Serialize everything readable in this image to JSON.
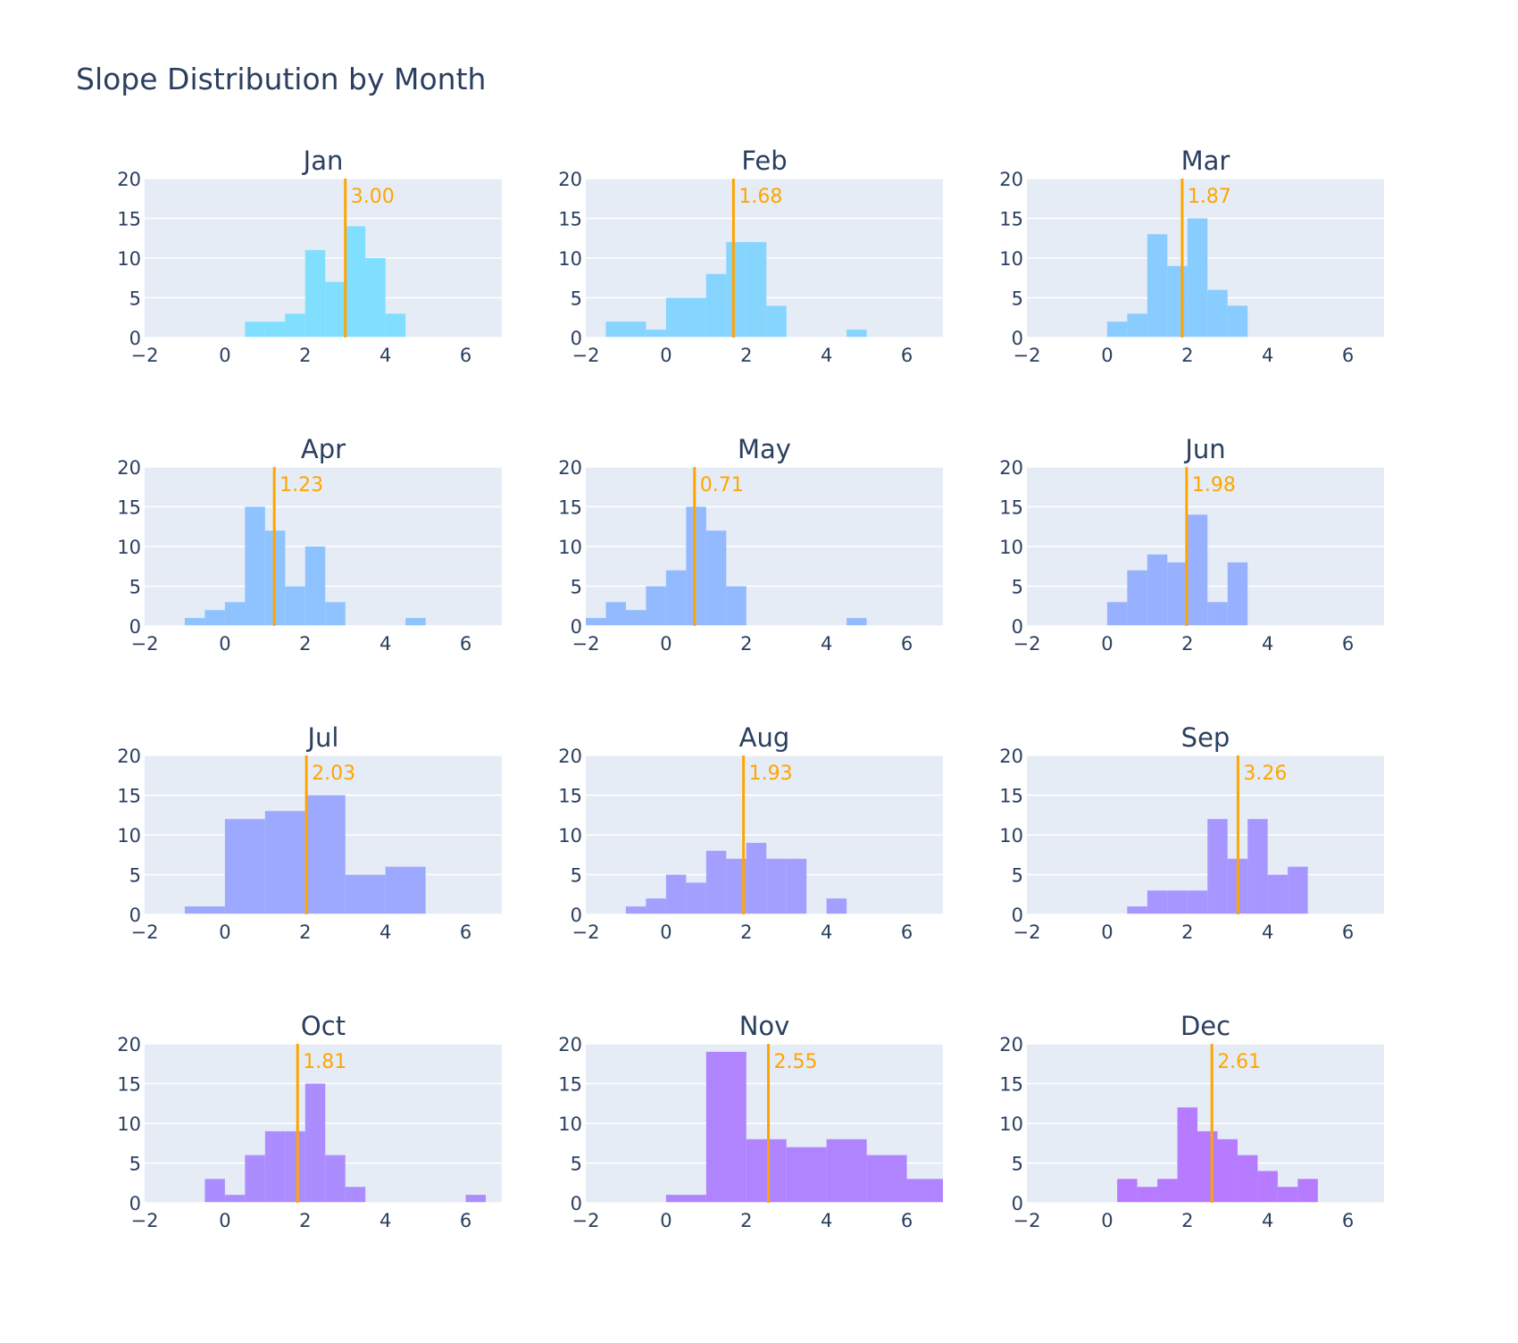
{
  "chart_data": {
    "type": "histogram-grid",
    "title": "Slope Distribution by Month",
    "xlim": [
      -2,
      6.9
    ],
    "ylim": [
      0,
      20
    ],
    "x_ticks": [
      "−2",
      "0",
      "2",
      "4",
      "6"
    ],
    "x_tick_values": [
      -2,
      0,
      2,
      4,
      6
    ],
    "y_ticks": [
      "0",
      "5",
      "10",
      "15",
      "20"
    ],
    "y_tick_values": [
      0,
      5,
      10,
      15,
      20
    ],
    "mean_line_color": "#FFA500",
    "plot_bg": "#E5ECF6",
    "panels": [
      {
        "month": "Jan",
        "mean": 3.0,
        "mean_label": "3.00",
        "color": "#80DFFF",
        "bins": [
          [
            0.5,
            1.0,
            2
          ],
          [
            1.0,
            1.5,
            2
          ],
          [
            1.5,
            2.0,
            3
          ],
          [
            2.0,
            2.5,
            11
          ],
          [
            2.5,
            3.0,
            7
          ],
          [
            3.0,
            3.5,
            14
          ],
          [
            3.5,
            4.0,
            10
          ],
          [
            4.0,
            4.5,
            3
          ]
        ]
      },
      {
        "month": "Feb",
        "mean": 1.68,
        "mean_label": "1.68",
        "color": "#85D5FF",
        "bins": [
          [
            -1.5,
            -1.0,
            2
          ],
          [
            -1.0,
            -0.5,
            2
          ],
          [
            -0.5,
            0.0,
            1
          ],
          [
            0.0,
            0.5,
            5
          ],
          [
            0.5,
            1.0,
            5
          ],
          [
            1.0,
            1.5,
            8
          ],
          [
            1.5,
            2.0,
            12
          ],
          [
            2.0,
            2.5,
            12
          ],
          [
            2.5,
            3.0,
            4
          ],
          [
            4.5,
            5.0,
            1
          ]
        ]
      },
      {
        "month": "Mar",
        "mean": 1.87,
        "mean_label": "1.87",
        "color": "#89CCFF",
        "bins": [
          [
            0.0,
            0.5,
            2
          ],
          [
            0.5,
            1.0,
            3
          ],
          [
            1.0,
            1.5,
            13
          ],
          [
            1.5,
            2.0,
            9
          ],
          [
            2.0,
            2.5,
            15
          ],
          [
            2.5,
            3.0,
            6
          ],
          [
            3.0,
            3.5,
            4
          ]
        ]
      },
      {
        "month": "Apr",
        "mean": 1.23,
        "mean_label": "1.23",
        "color": "#8EC3FF",
        "bins": [
          [
            -1.0,
            -0.5,
            1
          ],
          [
            -0.5,
            0.0,
            2
          ],
          [
            0.0,
            0.5,
            3
          ],
          [
            0.5,
            1.0,
            15
          ],
          [
            1.0,
            1.5,
            12
          ],
          [
            1.5,
            2.0,
            5
          ],
          [
            2.0,
            2.5,
            10
          ],
          [
            2.5,
            3.0,
            3
          ],
          [
            4.5,
            5.0,
            1
          ]
        ]
      },
      {
        "month": "May",
        "mean": 0.71,
        "mean_label": "0.71",
        "color": "#93BAFF",
        "bins": [
          [
            -2.0,
            -1.5,
            1
          ],
          [
            -1.5,
            -1.0,
            3
          ],
          [
            -1.0,
            -0.5,
            2
          ],
          [
            -0.5,
            0.0,
            5
          ],
          [
            0.0,
            0.5,
            7
          ],
          [
            0.5,
            1.0,
            15
          ],
          [
            1.0,
            1.5,
            12
          ],
          [
            1.5,
            2.0,
            5
          ],
          [
            4.5,
            5.0,
            1
          ]
        ]
      },
      {
        "month": "Jun",
        "mean": 1.98,
        "mean_label": "1.98",
        "color": "#98B1FF",
        "bins": [
          [
            0.0,
            0.5,
            3
          ],
          [
            0.5,
            1.0,
            7
          ],
          [
            1.0,
            1.5,
            9
          ],
          [
            1.5,
            2.0,
            8
          ],
          [
            2.0,
            2.5,
            14
          ],
          [
            2.5,
            3.0,
            3
          ],
          [
            3.0,
            3.5,
            8
          ]
        ]
      },
      {
        "month": "Jul",
        "mean": 2.03,
        "mean_label": "2.03",
        "color": "#9DA8FF",
        "bins": [
          [
            -1.0,
            0.0,
            1
          ],
          [
            0.0,
            1.0,
            12
          ],
          [
            1.0,
            2.0,
            13
          ],
          [
            2.0,
            3.0,
            15
          ],
          [
            3.0,
            4.0,
            5
          ],
          [
            4.0,
            5.0,
            6
          ]
        ]
      },
      {
        "month": "Aug",
        "mean": 1.93,
        "mean_label": "1.93",
        "color": "#A29FFF",
        "bins": [
          [
            -1.0,
            -0.5,
            1
          ],
          [
            -0.5,
            0.0,
            2
          ],
          [
            0.0,
            0.5,
            5
          ],
          [
            0.5,
            1.0,
            4
          ],
          [
            1.0,
            1.5,
            8
          ],
          [
            1.5,
            2.0,
            7
          ],
          [
            2.0,
            2.5,
            9
          ],
          [
            2.5,
            3.0,
            7
          ],
          [
            3.0,
            3.5,
            7
          ],
          [
            4.0,
            4.5,
            2
          ]
        ]
      },
      {
        "month": "Sep",
        "mean": 3.26,
        "mean_label": "3.26",
        "color": "#A796FF",
        "bins": [
          [
            0.5,
            1.0,
            1
          ],
          [
            1.0,
            1.5,
            3
          ],
          [
            1.5,
            2.0,
            3
          ],
          [
            2.0,
            2.5,
            3
          ],
          [
            2.5,
            3.0,
            12
          ],
          [
            3.0,
            3.5,
            7
          ],
          [
            3.5,
            4.0,
            12
          ],
          [
            4.0,
            4.5,
            5
          ],
          [
            4.5,
            5.0,
            6
          ]
        ]
      },
      {
        "month": "Oct",
        "mean": 1.81,
        "mean_label": "1.81",
        "color": "#AC8DFF",
        "bins": [
          [
            -0.5,
            0.0,
            3
          ],
          [
            0.0,
            0.5,
            1
          ],
          [
            0.5,
            1.0,
            6
          ],
          [
            1.0,
            1.5,
            9
          ],
          [
            1.5,
            2.0,
            9
          ],
          [
            2.0,
            2.5,
            15
          ],
          [
            2.5,
            3.0,
            6
          ],
          [
            3.0,
            3.5,
            2
          ],
          [
            6.0,
            6.5,
            1
          ]
        ]
      },
      {
        "month": "Nov",
        "mean": 2.55,
        "mean_label": "2.55",
        "color": "#B184FF",
        "bins": [
          [
            0.0,
            1.0,
            1
          ],
          [
            1.0,
            2.0,
            19
          ],
          [
            2.0,
            3.0,
            8
          ],
          [
            3.0,
            4.0,
            7
          ],
          [
            4.0,
            5.0,
            8
          ],
          [
            5.0,
            6.0,
            6
          ],
          [
            6.0,
            7.0,
            3
          ]
        ]
      },
      {
        "month": "Dec",
        "mean": 2.61,
        "mean_label": "2.61",
        "color": "#B67BFF",
        "bins": [
          [
            0.25,
            0.75,
            3
          ],
          [
            0.75,
            1.25,
            2
          ],
          [
            1.25,
            1.75,
            3
          ],
          [
            1.75,
            2.25,
            12
          ],
          [
            2.25,
            2.75,
            9
          ],
          [
            2.75,
            3.25,
            8
          ],
          [
            3.25,
            3.75,
            6
          ],
          [
            3.75,
            4.25,
            4
          ],
          [
            4.25,
            4.75,
            2
          ],
          [
            4.75,
            5.25,
            3
          ]
        ]
      }
    ]
  }
}
